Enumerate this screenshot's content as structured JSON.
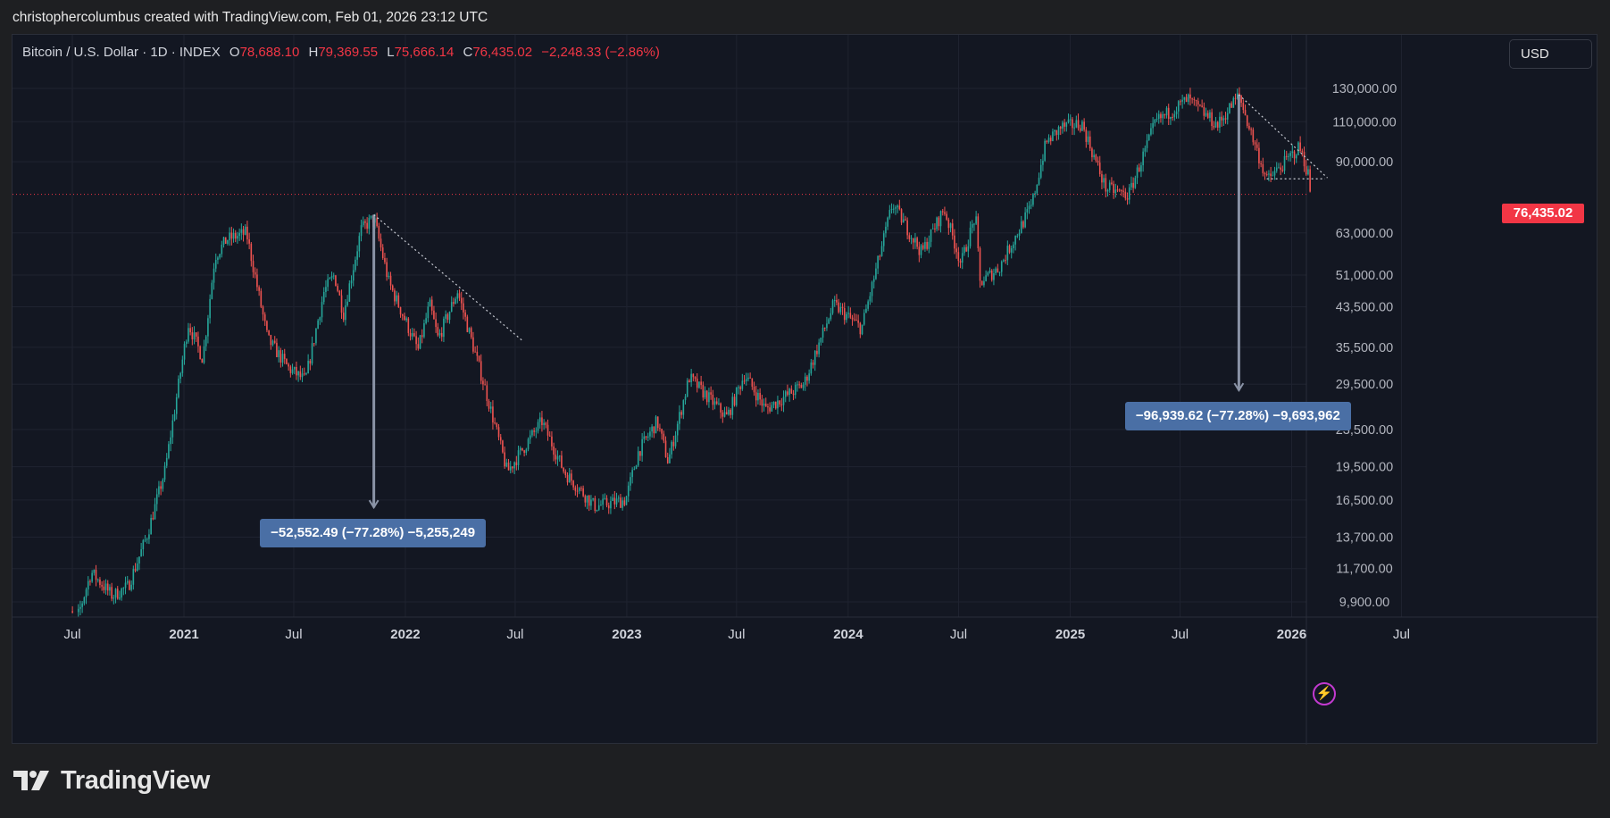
{
  "header": {
    "attribution": "christophercolumbus created with TradingView.com, Feb 01, 2026 23:12 UTC"
  },
  "footer": {
    "brand": "TradingView"
  },
  "toolbar": {
    "currency_button": "USD"
  },
  "legend": {
    "symbol": "Bitcoin / U.S. Dollar · 1D · INDEX",
    "open_label": "O",
    "open": "78,688.10",
    "high_label": "H",
    "high": "79,369.55",
    "low_label": "L",
    "low": "75,666.14",
    "close_label": "C",
    "close": "76,435.02",
    "change": "−2,248.33 (−2.86%)"
  },
  "colors": {
    "up": "#26a69a",
    "down": "#ef5350",
    "background": "#131722",
    "grid": "#1f2330",
    "measure_arrow": "#8a93a6",
    "measure_label_bg": "#4a6fa5",
    "last_price": "#f23645",
    "alert_icon": "#c23ad0"
  },
  "icons": {
    "alert": "lightning-bolt-icon"
  },
  "chart_data": {
    "type": "candlestick",
    "scale": "log",
    "grid": true,
    "x_ticks": [
      "Jul",
      "2021",
      "Jul",
      "2022",
      "Jul",
      "2023",
      "Jul",
      "2024",
      "Jul",
      "2025",
      "Jul",
      "2026",
      "Jul"
    ],
    "y_ticks": [
      "130,000.00",
      "110,000.00",
      "90,000.00",
      "63,000.00",
      "51,000.00",
      "43,500.00",
      "35,500.00",
      "29,500.00",
      "23,500.00",
      "19,500.00",
      "16,500.00",
      "13,700.00",
      "11,700.00",
      "9,900.00"
    ],
    "last_price": "76,435.02",
    "price_path": [
      [
        "2020-06-15",
        9300
      ],
      [
        "2020-07-10",
        9200
      ],
      [
        "2020-08-01",
        11500
      ],
      [
        "2020-09-05",
        10200
      ],
      [
        "2020-10-01",
        10700
      ],
      [
        "2020-11-01",
        13800
      ],
      [
        "2020-12-01",
        19200
      ],
      [
        "2021-01-08",
        40000
      ],
      [
        "2021-02-01",
        33500
      ],
      [
        "2021-02-21",
        56000
      ],
      [
        "2021-03-13",
        61000
      ],
      [
        "2021-04-14",
        63000
      ],
      [
        "2021-05-19",
        37000
      ],
      [
        "2021-06-22",
        32000
      ],
      [
        "2021-07-20",
        30000
      ],
      [
        "2021-08-20",
        47000
      ],
      [
        "2021-09-06",
        51000
      ],
      [
        "2021-09-21",
        42000
      ],
      [
        "2021-10-20",
        64000
      ],
      [
        "2021-11-10",
        68000
      ],
      [
        "2021-12-05",
        49000
      ],
      [
        "2022-01-22",
        35000
      ],
      [
        "2022-02-10",
        44000
      ],
      [
        "2022-02-24",
        37000
      ],
      [
        "2022-03-28",
        47000
      ],
      [
        "2022-05-12",
        29000
      ],
      [
        "2022-06-18",
        19000
      ],
      [
        "2022-08-14",
        24500
      ],
      [
        "2022-09-20",
        19000
      ],
      [
        "2022-11-09",
        16000
      ],
      [
        "2022-12-30",
        16500
      ],
      [
        "2023-01-20",
        21000
      ],
      [
        "2023-02-20",
        24500
      ],
      [
        "2023-03-10",
        20000
      ],
      [
        "2023-04-14",
        30500
      ],
      [
        "2023-06-15",
        25000
      ],
      [
        "2023-07-14",
        31000
      ],
      [
        "2023-08-18",
        26000
      ],
      [
        "2023-10-20",
        29500
      ],
      [
        "2023-12-08",
        44000
      ],
      [
        "2024-01-23",
        39000
      ],
      [
        "2024-03-14",
        73000
      ],
      [
        "2024-05-01",
        57000
      ],
      [
        "2024-06-07",
        71000
      ],
      [
        "2024-07-05",
        54000
      ],
      [
        "2024-07-29",
        69000
      ],
      [
        "2024-08-05",
        49000
      ],
      [
        "2024-09-06",
        53000
      ],
      [
        "2024-10-29",
        72000
      ],
      [
        "2024-11-22",
        99000
      ],
      [
        "2024-12-17",
        107000
      ],
      [
        "2025-01-20",
        109000
      ],
      [
        "2025-02-28",
        79000
      ],
      [
        "2025-04-07",
        76000
      ],
      [
        "2025-05-22",
        110000
      ],
      [
        "2025-07-14",
        123000
      ],
      [
        "2025-09-01",
        108000
      ],
      [
        "2025-10-06",
        126000
      ],
      [
        "2025-10-20",
        110000
      ],
      [
        "2025-11-21",
        82000
      ],
      [
        "2025-12-15",
        88000
      ],
      [
        "2026-01-14",
        97000
      ],
      [
        "2026-01-29",
        84000
      ],
      [
        "2026-02-01",
        76435
      ]
    ],
    "drawings": [
      {
        "type": "measure",
        "label": "−52,552.49 (−77.28%) −5,255,249",
        "from": [
          "2021-11-10",
          69000
        ],
        "to": [
          "2021-11-10",
          15900
        ]
      },
      {
        "type": "measure",
        "label": "−96,939.62 (−77.28%) −9,693,962",
        "from": [
          "2025-10-06",
          126000
        ],
        "to": [
          "2025-10-06",
          28600
        ]
      },
      {
        "type": "trendline",
        "from": [
          "2021-11-10",
          69000
        ],
        "to": [
          "2022-07-15",
          36500
        ]
      },
      {
        "type": "trendline",
        "from": [
          "2025-10-06",
          126000
        ],
        "to": [
          "2026-03-01",
          83000
        ]
      },
      {
        "type": "hline",
        "from": [
          "2025-11-21",
          82600
        ],
        "to": [
          "2026-02-25",
          82600
        ]
      }
    ]
  }
}
